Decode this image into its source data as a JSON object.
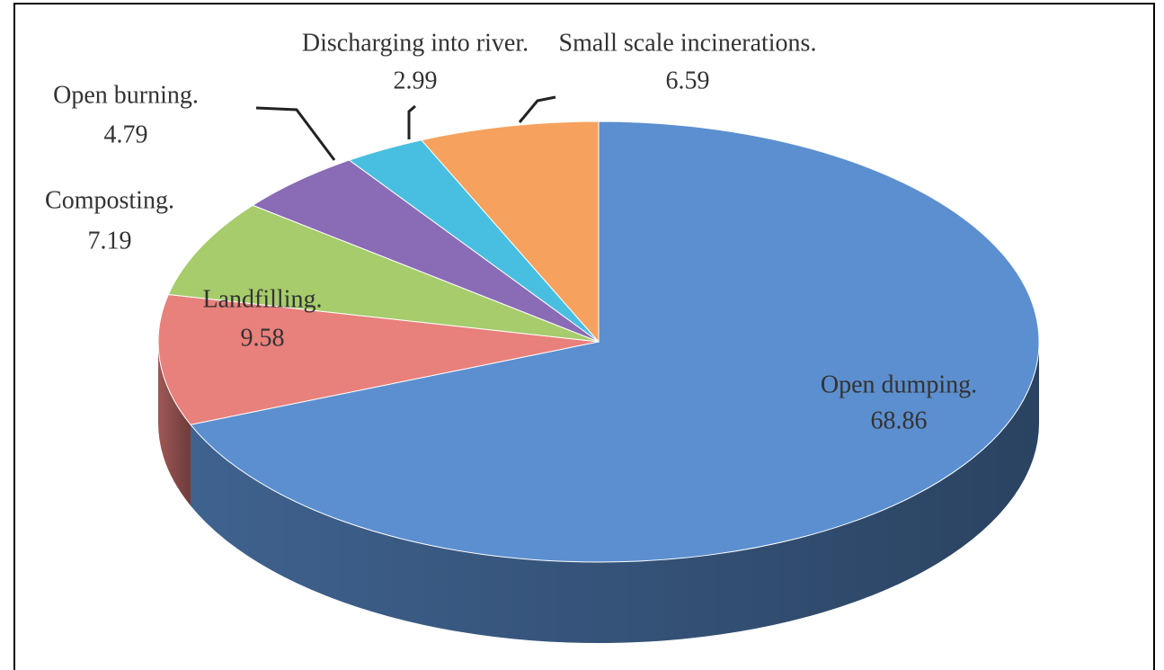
{
  "chart_data": {
    "type": "pie",
    "categories": [
      "Open dumping.",
      "Landfilling.",
      "Composting.",
      "Open burning.",
      "Discharging into river.",
      "Small scale incinerations."
    ],
    "values": [
      68.86,
      9.58,
      7.19,
      4.79,
      2.99,
      6.59
    ],
    "colors": [
      "#5b8fd0",
      "#e8807c",
      "#a6cc6b",
      "#8a6bb5",
      "#48bfe0",
      "#f7a15e"
    ]
  }
}
